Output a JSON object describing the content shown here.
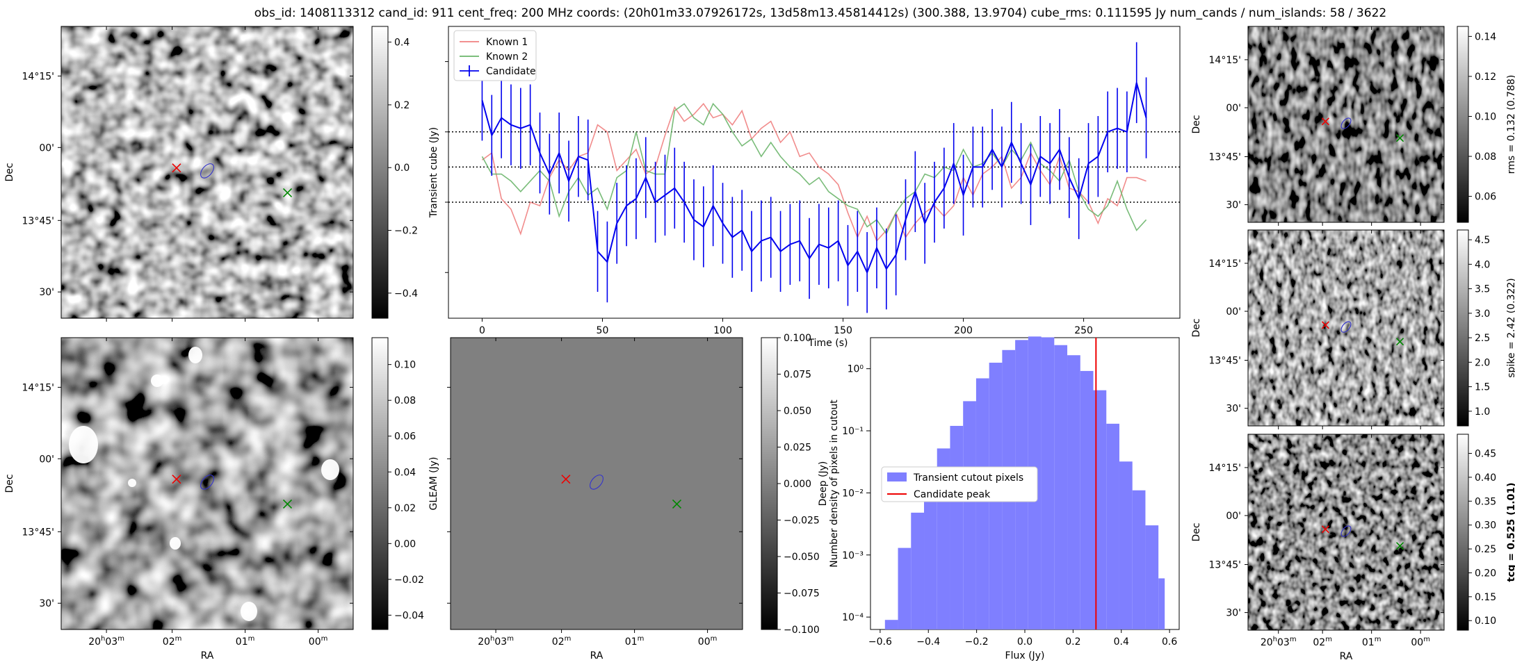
{
  "title": "obs_id: 1408113312 cand_id: 911 cent_freq: 200 MHz coords: (20h01m33.07926172s, 13d58m13.45814412s) (300.388, 13.9704) cube_rms: 0.111595 Jy num_cands / num_islands: 58 / 3622",
  "colors": {
    "known1": "#f08080",
    "known2": "#6ab56a",
    "candidate": "#0000ee",
    "hist_fill": "#7f7fff",
    "peak_line": "#ee0000",
    "marker_red": "#ee0000",
    "marker_green": "#008800",
    "contour": "#3333cc"
  },
  "sky_axes": {
    "ra_ticks": [
      "20h03m",
      "02m",
      "01m",
      "00m"
    ],
    "dec_ticks": [
      "14°15'",
      "00'",
      "13°45'",
      "30'"
    ],
    "xlabel": "RA",
    "ylabel": "Dec"
  },
  "panels": {
    "transient": {
      "colorbar_label": "Transient cube (Jy)",
      "colorbar_ticks": [
        "0.4",
        "0.2",
        "0.0",
        "−0.2",
        "−0.4"
      ],
      "colorbar_range": [
        -0.48,
        0.45
      ]
    },
    "gleam_image": {
      "colorbar_label": "GLEAM (Jy)",
      "colorbar_ticks": [
        "0.10",
        "0.08",
        "0.06",
        "0.04",
        "0.02",
        "0.00",
        "−0.02",
        "−0.04"
      ],
      "colorbar_range": [
        -0.048,
        0.115
      ]
    },
    "deep": {
      "colorbar_label": "Deep (Jy)",
      "colorbar_ticks": [
        "0.100",
        "0.075",
        "0.050",
        "0.025",
        "0.000",
        "−0.025",
        "−0.050",
        "−0.075",
        "−0.100"
      ],
      "colorbar_range": [
        -0.1,
        0.1
      ]
    },
    "rms": {
      "colorbar_label": "rms = 0.132 (0.788)",
      "colorbar_ticks": [
        "0.14",
        "0.12",
        "0.10",
        "0.08",
        "0.06"
      ],
      "colorbar_range": [
        0.047,
        0.145
      ]
    },
    "spike": {
      "colorbar_label": "spike = 2.42 (0.322)",
      "colorbar_ticks": [
        "4.5",
        "4.0",
        "3.5",
        "3.0",
        "2.5",
        "2.0",
        "1.5",
        "1.0"
      ],
      "colorbar_range": [
        0.7,
        4.7
      ]
    },
    "tcg": {
      "colorbar_label": "tcg = 0.525 (1.01)",
      "colorbar_ticks": [
        "0.45",
        "0.40",
        "0.35",
        "0.30",
        "0.25",
        "0.20",
        "0.15",
        "0.10"
      ],
      "colorbar_range": [
        0.08,
        0.49
      ]
    }
  },
  "chart_data": [
    {
      "type": "line",
      "xlabel": "Time (s)",
      "ylabel": "",
      "xlim": [
        -14,
        290
      ],
      "ylim": [
        -0.43,
        0.4
      ],
      "x_ticks": [
        0,
        50,
        100,
        150,
        200,
        250
      ],
      "x_tick_labels": [
        "0",
        "50",
        "100",
        "150",
        "200",
        "250"
      ],
      "legend": "top-left",
      "hlines": [
        0.1,
        0.0,
        -0.1
      ],
      "x": [
        0,
        4,
        8,
        12,
        16,
        20,
        24,
        28,
        32,
        36,
        40,
        44,
        48,
        52,
        56,
        60,
        64,
        68,
        72,
        76,
        80,
        84,
        88,
        92,
        96,
        100,
        104,
        108,
        112,
        116,
        120,
        124,
        128,
        132,
        136,
        140,
        144,
        148,
        152,
        156,
        160,
        164,
        168,
        172,
        176,
        180,
        184,
        188,
        192,
        196,
        200,
        204,
        208,
        212,
        216,
        220,
        224,
        228,
        232,
        236,
        240,
        244,
        248,
        252,
        256,
        260,
        264,
        268,
        272,
        276
      ],
      "series": [
        {
          "name": "Known 1",
          "values": [
            0.02,
            0.04,
            -0.09,
            -0.12,
            -0.19,
            -0.1,
            -0.11,
            -0.03,
            0.02,
            -0.01,
            0.03,
            0.04,
            0.12,
            0.1,
            -0.01,
            0.02,
            0.05,
            -0.02,
            0.0,
            0.09,
            0.17,
            0.13,
            0.15,
            0.18,
            0.14,
            0.15,
            0.12,
            0.16,
            0.08,
            0.11,
            0.13,
            0.07,
            0.1,
            0.03,
            0.04,
            0.0,
            -0.02,
            -0.05,
            -0.13,
            -0.2,
            -0.14,
            -0.21,
            -0.18,
            -0.13,
            -0.2,
            -0.16,
            -0.13,
            -0.11,
            -0.14,
            -0.11,
            -0.03,
            -0.08,
            -0.02,
            0.0,
            0.03,
            -0.06,
            -0.03,
            0.04,
            -0.01,
            -0.05,
            0.03,
            -0.06,
            -0.07,
            -0.1,
            -0.16,
            -0.09,
            -0.11,
            -0.03,
            -0.03,
            -0.04
          ]
        },
        {
          "name": "Known 2",
          "values": [
            0.03,
            -0.02,
            -0.02,
            -0.04,
            -0.07,
            -0.04,
            -0.01,
            -0.04,
            -0.14,
            -0.07,
            -0.03,
            -0.08,
            -0.06,
            -0.12,
            -0.03,
            -0.01,
            0.1,
            -0.01,
            -0.02,
            -0.02,
            0.16,
            0.18,
            0.14,
            0.12,
            0.18,
            0.15,
            0.1,
            0.06,
            0.08,
            0.03,
            0.07,
            0.03,
            0.0,
            -0.02,
            -0.05,
            -0.03,
            -0.07,
            -0.09,
            -0.11,
            -0.12,
            -0.17,
            -0.15,
            -0.19,
            -0.13,
            -0.09,
            -0.07,
            -0.02,
            -0.03,
            0.0,
            -0.01,
            0.05,
            0.0,
            0.01,
            0.04,
            0.0,
            0.05,
            0.02,
            0.07,
            0.01,
            -0.01,
            -0.04,
            0.02,
            -0.07,
            -0.12,
            -0.14,
            -0.11,
            -0.04,
            -0.12,
            -0.18,
            -0.15
          ]
        },
        {
          "name": "Candidate",
          "values": [
            0.19,
            0.09,
            0.14,
            0.12,
            0.11,
            0.12,
            0.04,
            -0.02,
            0.04,
            -0.04,
            0.03,
            0.02,
            -0.24,
            -0.27,
            -0.16,
            -0.11,
            -0.09,
            -0.03,
            -0.1,
            -0.08,
            -0.06,
            -0.1,
            -0.15,
            -0.17,
            -0.11,
            -0.16,
            -0.2,
            -0.18,
            -0.24,
            -0.21,
            -0.2,
            -0.24,
            -0.22,
            -0.21,
            -0.26,
            -0.22,
            -0.23,
            -0.21,
            -0.28,
            -0.24,
            -0.3,
            -0.23,
            -0.29,
            -0.25,
            -0.15,
            -0.07,
            -0.16,
            -0.1,
            -0.06,
            0.01,
            -0.08,
            0.0,
            0.0,
            0.05,
            0.0,
            0.07,
            0.01,
            -0.05,
            0.03,
            0.01,
            0.05,
            -0.03,
            -0.09,
            0.01,
            0.03,
            0.1,
            0.11,
            0.1,
            0.24,
            0.14
          ],
          "error": 0.115
        }
      ]
    },
    {
      "type": "bar",
      "xlabel": "Flux (Jy)",
      "ylabel": "Number density of pixels in cutout",
      "xlim": [
        -0.64,
        0.64
      ],
      "ylog_range": [
        -4.2,
        0.5
      ],
      "x_ticks": [
        -0.6,
        -0.4,
        -0.2,
        0.0,
        0.2,
        0.4,
        0.6
      ],
      "x_tick_labels": [
        "−0.6",
        "−0.4",
        "−0.2",
        "0.0",
        "0.2",
        "0.4",
        "0.6"
      ],
      "y_tick_labels": [
        "10⁰",
        "10⁻¹",
        "10⁻²",
        "10⁻³",
        "10⁻⁴"
      ],
      "legend": "center-left",
      "bin_edges": [
        -0.58,
        -0.526,
        -0.472,
        -0.418,
        -0.364,
        -0.31,
        -0.256,
        -0.202,
        -0.148,
        -0.094,
        -0.04,
        0.014,
        0.068,
        0.122,
        0.176,
        0.23,
        0.284,
        0.338,
        0.392,
        0.446,
        0.5,
        0.554,
        0.58
      ],
      "values": [
        9e-05,
        0.0013,
        0.0048,
        0.0155,
        0.052,
        0.12,
        0.3,
        0.7,
        1.25,
        2.0,
        2.9,
        3.3,
        3.2,
        2.4,
        1.65,
        0.92,
        0.45,
        0.13,
        0.032,
        0.011,
        0.003,
        0.00042
      ],
      "series": [
        {
          "name": "Transient cutout pixels"
        },
        {
          "name": "Candidate peak",
          "value": 0.295
        }
      ]
    }
  ]
}
